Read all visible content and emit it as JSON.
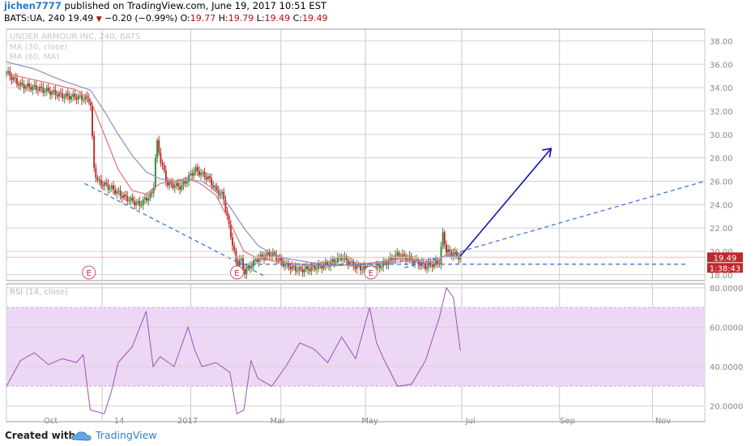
{
  "header": {
    "author": "jichen7777",
    "published_text": "published on TradingView.com, June 19, 2017 10:51 EST",
    "symbol_line": "BATS:UA, 240",
    "last": "19.49",
    "change": "−0.20 (−0.99%)",
    "open_label": "O:",
    "open": "19.77",
    "high_label": "H:",
    "high": "19.79",
    "low_label": "L:",
    "low": "19.49",
    "close_label": "C:",
    "close": "19.49"
  },
  "footer": {
    "created_with": "Created with",
    "brand": "TradingView"
  },
  "colors": {
    "price_up": "#3c8a3c",
    "price_down": "#c03030",
    "ma1": "#e07070",
    "ma2": "#8890c0",
    "trend_blue": "#3a78d8",
    "arrow": "#1414b4",
    "rsi": "#a050b8",
    "rsi_band": "#ecd8f4",
    "price_badge": "#c0282c"
  },
  "chart_data": [
    {
      "type": "candlestick",
      "title": "UNDER ARMOUR INC, 240, BATS",
      "indicators": [
        "MA (30, close)",
        "MA (60, MA)"
      ],
      "x_ticks": [
        "Oct",
        "14",
        "2017",
        "Mar",
        "May",
        "Jul",
        "Sep",
        "Nov"
      ],
      "y_ticks": [
        "38.00",
        "36.00",
        "34.00",
        "32.00",
        "30.00",
        "28.00",
        "26.00",
        "24.00",
        "22.00",
        "20.00",
        "19.49",
        "18.00"
      ],
      "ylim": [
        17.5,
        39
      ],
      "price_label": "19.49",
      "countdown_label": "1:38:43",
      "earnings_markers": [
        "E",
        "E",
        "E"
      ],
      "price_path_x": [
        0,
        0.02,
        0.04,
        0.06,
        0.08,
        0.1,
        0.12,
        0.125,
        0.13,
        0.15,
        0.17,
        0.19,
        0.21,
        0.215,
        0.22,
        0.23,
        0.25,
        0.27,
        0.29,
        0.3,
        0.31,
        0.33,
        0.335,
        0.34,
        0.36,
        0.38,
        0.4,
        0.42,
        0.44,
        0.46,
        0.48,
        0.5,
        0.52,
        0.54,
        0.56,
        0.58,
        0.6,
        0.62,
        0.625,
        0.63,
        0.65
      ],
      "price_path_y": [
        35.3,
        34.2,
        34.0,
        33.7,
        33.3,
        33.2,
        33.0,
        27.3,
        26.0,
        25.4,
        24.6,
        24.0,
        25.0,
        29.5,
        28.0,
        25.8,
        25.5,
        27.0,
        26.2,
        25.2,
        24.8,
        18.7,
        19.5,
        18.2,
        19.4,
        19.8,
        18.8,
        18.4,
        18.6,
        18.9,
        19.5,
        18.7,
        18.4,
        18.9,
        19.7,
        19.3,
        18.7,
        19.1,
        21.5,
        20.0,
        19.49
      ],
      "ma30_x": [
        0,
        0.06,
        0.1,
        0.12,
        0.14,
        0.16,
        0.18,
        0.2,
        0.22,
        0.24,
        0.26,
        0.28,
        0.3,
        0.32,
        0.34,
        0.36,
        0.4,
        0.44,
        0.48,
        0.52,
        0.56,
        0.58,
        0.6,
        0.62,
        0.64,
        0.65
      ],
      "ma30_y": [
        35.2,
        34.4,
        33.8,
        33.0,
        30.0,
        27.0,
        25.2,
        24.9,
        25.8,
        26.0,
        26.3,
        25.7,
        24.8,
        22.5,
        20.0,
        19.4,
        19.0,
        18.8,
        18.8,
        19.0,
        19.3,
        19.3,
        19.0,
        19.3,
        20.2,
        19.7
      ],
      "ma60_x": [
        0,
        0.04,
        0.08,
        0.12,
        0.14,
        0.16,
        0.18,
        0.2,
        0.22,
        0.24,
        0.26,
        0.28,
        0.3,
        0.32,
        0.34,
        0.36,
        0.38,
        0.4,
        0.44,
        0.48,
        0.52,
        0.56,
        0.6,
        0.64,
        0.65
      ],
      "ma60_y": [
        36.2,
        35.6,
        34.6,
        33.8,
        32.0,
        30.0,
        28.2,
        26.8,
        26.2,
        26.0,
        26.1,
        26.0,
        25.2,
        23.8,
        22.0,
        20.5,
        19.8,
        19.4,
        19.0,
        18.8,
        18.9,
        19.1,
        19.3,
        19.6,
        19.6
      ]
    },
    {
      "type": "line",
      "title": "RSI (14, close)",
      "y_ticks": [
        "80.0000",
        "60.0000",
        "40.0000",
        "20.0000"
      ],
      "ylim": [
        12,
        82
      ],
      "band": [
        30,
        70
      ],
      "x": [
        0,
        0.02,
        0.04,
        0.06,
        0.08,
        0.1,
        0.11,
        0.12,
        0.14,
        0.15,
        0.16,
        0.18,
        0.2,
        0.21,
        0.22,
        0.24,
        0.26,
        0.27,
        0.28,
        0.3,
        0.32,
        0.33,
        0.34,
        0.35,
        0.36,
        0.38,
        0.4,
        0.42,
        0.44,
        0.46,
        0.48,
        0.5,
        0.52,
        0.53,
        0.54,
        0.56,
        0.58,
        0.6,
        0.62,
        0.63,
        0.64,
        0.65
      ],
      "values": [
        30,
        43,
        47,
        41,
        44,
        42,
        46,
        18,
        16,
        27,
        42,
        50,
        68,
        40,
        45,
        40,
        60,
        48,
        40,
        42,
        37,
        16,
        18,
        43,
        34,
        30,
        40,
        52,
        49,
        42,
        55,
        44,
        70,
        52,
        44,
        30,
        31,
        43,
        65,
        80,
        75,
        48
      ]
    }
  ]
}
